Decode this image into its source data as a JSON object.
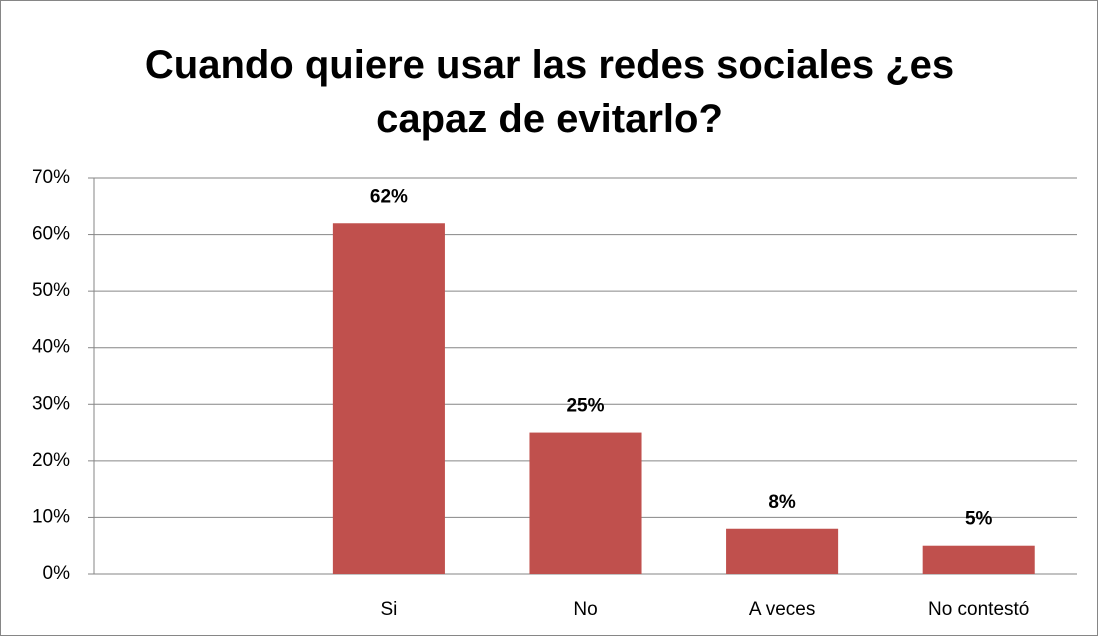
{
  "chart_data": {
    "type": "bar",
    "title": "Cuando quiere usar las redes sociales ¿es capaz de evitarlo?",
    "categories": [
      null,
      "Si",
      "No",
      "A veces",
      "No contestó"
    ],
    "values": [
      null,
      62,
      25,
      8,
      5
    ],
    "value_labels": [
      null,
      "62%",
      "25%",
      "8%",
      "5%"
    ],
    "color": "#c0504d",
    "ylim": [
      0,
      70
    ],
    "yticks": [
      {
        "value": 0,
        "label": "0%"
      },
      {
        "value": 10,
        "label": "10%"
      },
      {
        "value": 20,
        "label": "20%"
      },
      {
        "value": 30,
        "label": "30%"
      },
      {
        "value": 40,
        "label": "40%"
      },
      {
        "value": 50,
        "label": "50%"
      },
      {
        "value": 60,
        "label": "60%"
      },
      {
        "value": 70,
        "label": "70%"
      }
    ],
    "grid": true
  }
}
